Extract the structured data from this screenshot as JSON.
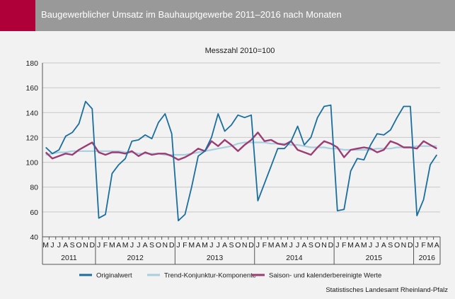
{
  "header": {
    "title": "Baugewerblicher Umsatz im Bauhauptgewerbe 2011–2016 nach Monaten"
  },
  "source": "Statistisches Landesamt Rheinland-Pfalz",
  "colors": {
    "accent": "#b0003a",
    "header_bg": "#999999",
    "original": "#1a6e9e",
    "trend": "#a8cfe0",
    "seasonal": "#9c3c73"
  },
  "chart_data": {
    "type": "line",
    "title": "Messzahl 2010=100",
    "ylim": [
      40,
      180
    ],
    "yticks": [
      40,
      60,
      80,
      100,
      120,
      140,
      160,
      180
    ],
    "grid": true,
    "legend_position": "bottom",
    "month_labels": [
      "M",
      "J",
      "J",
      "A",
      "S",
      "O",
      "N",
      "D",
      "J",
      "F",
      "M",
      "A",
      "M",
      "J",
      "J",
      "A",
      "S",
      "O",
      "N",
      "D",
      "J",
      "F",
      "M",
      "A",
      "M",
      "J",
      "J",
      "A",
      "S",
      "O",
      "N",
      "D",
      "J",
      "F",
      "M",
      "A",
      "M",
      "J",
      "J",
      "A",
      "S",
      "O",
      "N",
      "D",
      "J",
      "F",
      "M",
      "A",
      "M",
      "J",
      "J",
      "A",
      "S",
      "O",
      "N",
      "D",
      "J",
      "F",
      "M",
      "A"
    ],
    "years": [
      {
        "label": "2011",
        "start": 0,
        "end": 7
      },
      {
        "label": "2012",
        "start": 8,
        "end": 19
      },
      {
        "label": "2013",
        "start": 20,
        "end": 31
      },
      {
        "label": "2014",
        "start": 32,
        "end": 43
      },
      {
        "label": "2015",
        "start": 44,
        "end": 55
      },
      {
        "label": "2016",
        "start": 56,
        "end": 59
      }
    ],
    "series": [
      {
        "name": "Originalwert",
        "values": [
          112,
          107,
          110,
          121,
          124,
          131,
          149,
          143,
          55,
          58,
          91,
          98,
          103,
          117,
          118,
          122,
          119,
          132,
          139,
          123,
          53,
          58,
          80,
          105,
          109,
          120,
          139,
          125,
          130,
          138,
          136,
          138,
          69,
          83,
          97,
          111,
          111,
          117,
          129,
          114,
          120,
          136,
          145,
          146,
          61,
          62,
          93,
          103,
          102,
          114,
          123,
          122,
          126,
          136,
          145,
          145,
          57,
          70,
          98,
          106
        ]
      },
      {
        "name": "Trend-Konjunktur-Komponente",
        "values": [
          106,
          107,
          108,
          108,
          109,
          109,
          109,
          109,
          109,
          109,
          109,
          109,
          108,
          108,
          107,
          107,
          107,
          107,
          106,
          106,
          106,
          106,
          107,
          108,
          109,
          110,
          111,
          112,
          113,
          115,
          116,
          116,
          116,
          116,
          115,
          115,
          115,
          114,
          114,
          113,
          112,
          112,
          112,
          111,
          111,
          110,
          110,
          110,
          110,
          110,
          111,
          111,
          111,
          112,
          112,
          112,
          113,
          113,
          113,
          113
        ]
      },
      {
        "name": "Saison- und kalenderbereinigte Werte",
        "values": [
          108,
          103,
          105,
          107,
          106,
          110,
          113,
          116,
          108,
          106,
          108,
          108,
          107,
          109,
          105,
          108,
          106,
          107,
          107,
          105,
          102,
          104,
          107,
          111,
          109,
          117,
          113,
          118,
          114,
          109,
          114,
          118,
          124,
          117,
          118,
          115,
          114,
          117,
          110,
          108,
          106,
          112,
          117,
          115,
          112,
          104,
          110,
          111,
          112,
          111,
          108,
          110,
          117,
          115,
          112,
          112,
          111,
          117,
          114,
          111
        ]
      }
    ]
  }
}
